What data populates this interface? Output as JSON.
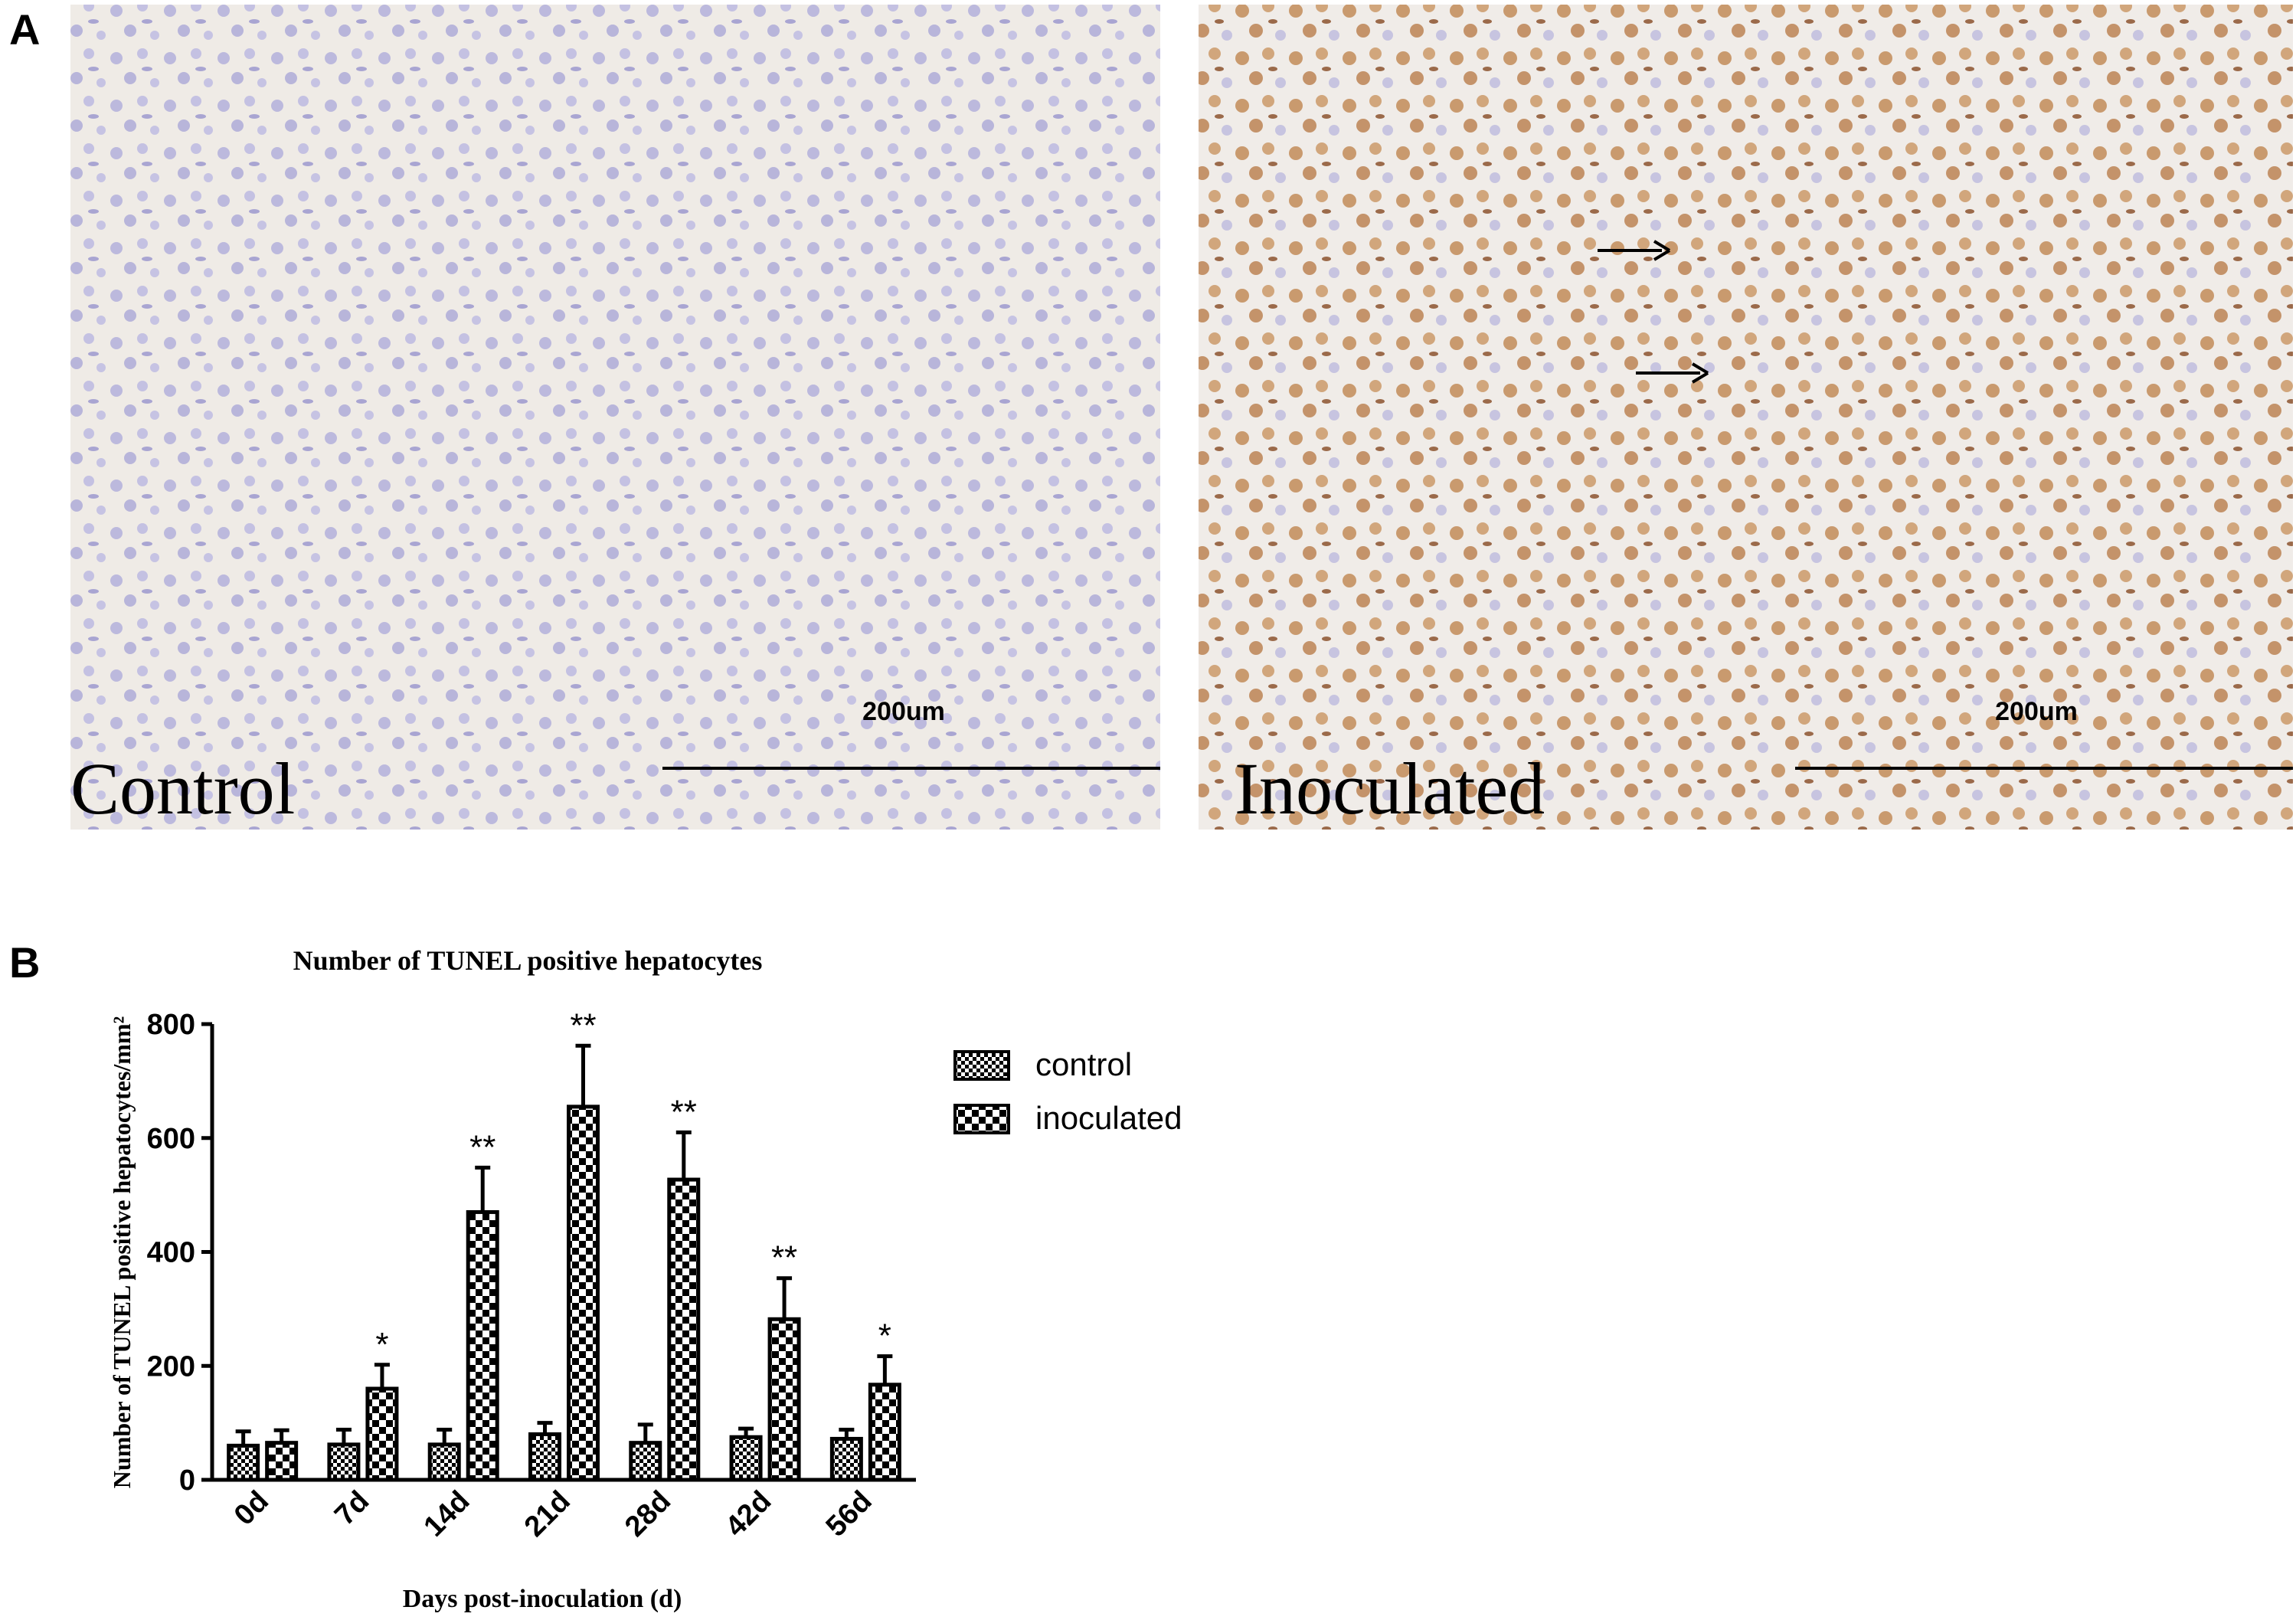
{
  "panel_a": {
    "label": "A",
    "images": [
      {
        "caption": "Control",
        "scale_label": "200um"
      },
      {
        "caption": "Inoculated",
        "scale_label": "200um"
      }
    ]
  },
  "panel_b_label": "B",
  "chart_data": {
    "type": "bar",
    "title": "Number of TUNEL positive hepatocytes",
    "x_label": "Days post-inoculation (d)",
    "y_label": "Number of TUNEL positive hepatocytes/mm²",
    "categories": [
      "0d",
      "7d",
      "14d",
      "21d",
      "28d",
      "42d",
      "56d"
    ],
    "series": [
      {
        "name": "control",
        "color": "#000000",
        "values": [
          60,
          62,
          62,
          80,
          65,
          75,
          72
        ],
        "errors": [
          25,
          26,
          26,
          20,
          32,
          15,
          16
        ]
      },
      {
        "name": "inoculated",
        "color": "#000000",
        "values": [
          65,
          160,
          470,
          655,
          527,
          282,
          167
        ],
        "errors": [
          22,
          42,
          78,
          107,
          83,
          72,
          50
        ],
        "annotations": [
          null,
          "*",
          "**",
          "**",
          "**",
          "**",
          "*"
        ]
      }
    ],
    "ylim": [
      0,
      800
    ],
    "yticks": [
      0,
      200,
      400,
      600,
      800
    ],
    "grid": false,
    "legend": "right"
  }
}
